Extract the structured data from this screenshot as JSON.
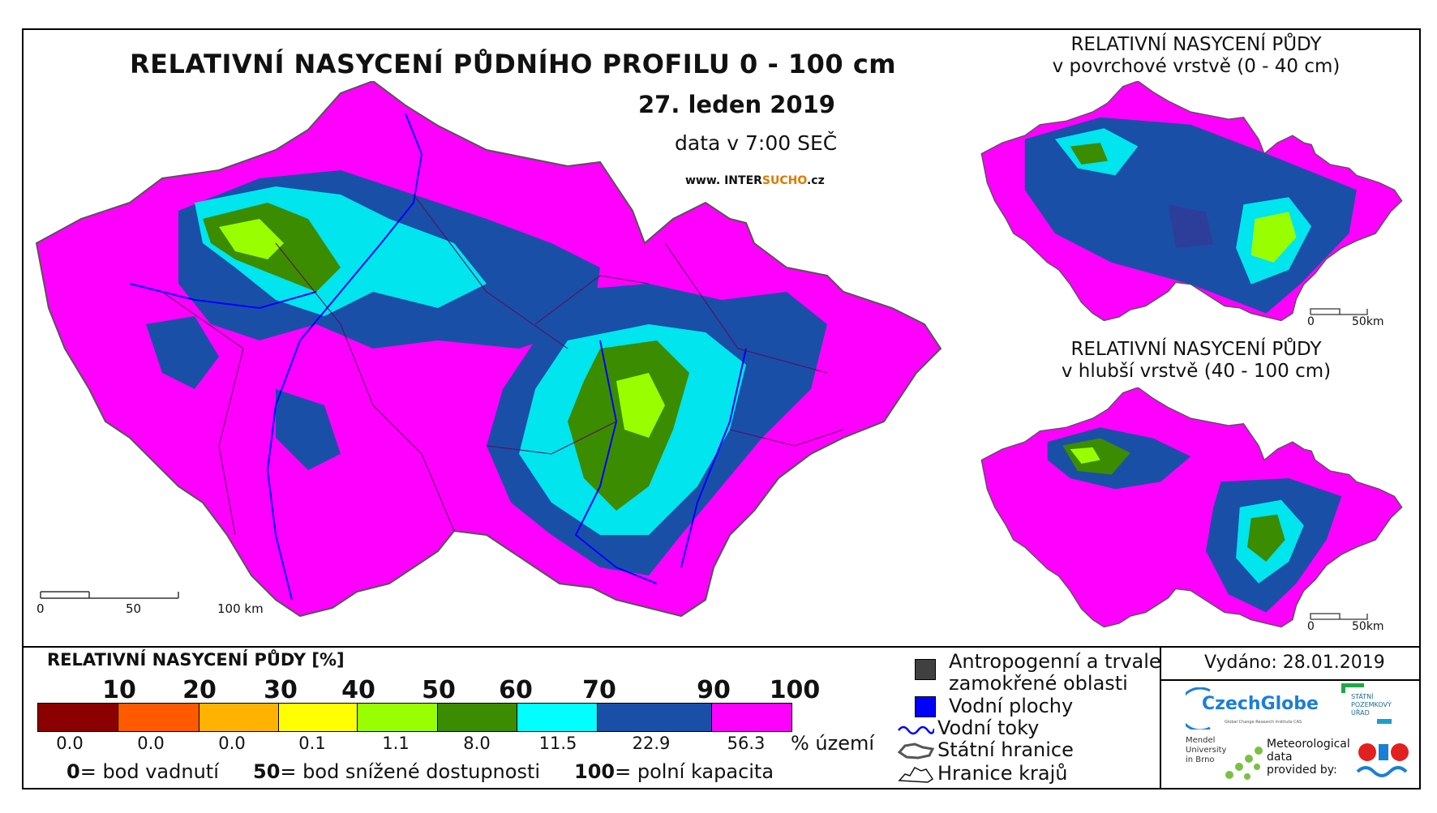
{
  "title": "RELATIVNÍ NASYCENÍ PŮDNÍHO PROFILU 0 - 100 cm",
  "date": "27. leden 2019",
  "data_time": "data v 7:00 SEČ",
  "website": {
    "prefix": "www. INTER",
    "highlight": "SUCHO",
    "suffix": ".cz"
  },
  "main_map": {
    "scalebar": {
      "labels": [
        "0",
        "50",
        "100 km"
      ]
    }
  },
  "inset_surface": {
    "title_line1": "RELATIVNÍ NASYCENÍ PŮDY",
    "title_line2": "v povrchové vrstvě (0 - 40 cm)",
    "scalebar": {
      "labels": [
        "0",
        "50km"
      ]
    }
  },
  "inset_deep": {
    "title_line1": "RELATIVNÍ NASYCENÍ PŮDY",
    "title_line2": "v hlubší vrstvě (40 - 100 cm)",
    "scalebar": {
      "labels": [
        "0",
        "50km"
      ]
    }
  },
  "legend": {
    "title": "RELATIVNÍ NASYCENÍ PŮDY [%]",
    "ticks": [
      "10",
      "20",
      "30",
      "40",
      "50",
      "60",
      "70",
      "90",
      "100"
    ],
    "classes": [
      {
        "color": "#8b0000",
        "percent": "0.0"
      },
      {
        "color": "#ff5a00",
        "percent": "0.0"
      },
      {
        "color": "#ffb300",
        "percent": "0.0"
      },
      {
        "color": "#ffff00",
        "percent": "0.1"
      },
      {
        "color": "#99ff00",
        "percent": "1.1"
      },
      {
        "color": "#3c8c00",
        "percent": "8.0"
      },
      {
        "color": "#00ffff",
        "percent": "11.5"
      },
      {
        "color": "#1a4fa8",
        "percent": "22.9"
      },
      {
        "color": "#ff00ff",
        "percent": "56.3"
      }
    ],
    "percent_unit": "% území",
    "definitions": [
      {
        "value": "0",
        "text": "= bod vadnutí"
      },
      {
        "value": "50",
        "text": "= bod snížené dostupnosti"
      },
      {
        "value": "100",
        "text": "= polní kapacita"
      }
    ]
  },
  "symbols": [
    {
      "icon": "gray-square",
      "color": "#404040",
      "line1": "Antropogenní a trvale",
      "line2": "zamokřené oblasti"
    },
    {
      "icon": "blue-square",
      "color": "#0000ff",
      "line1": "Vodní plochy"
    },
    {
      "icon": "river-line",
      "color": "#0000ff",
      "line1": "Vodní toky"
    },
    {
      "icon": "state-border",
      "line1": "Státní hranice"
    },
    {
      "icon": "region-border",
      "line1": "Hranice krajů"
    }
  ],
  "issued": "Vydáno: 28.01.2019",
  "logos": {
    "czechglobe": "CzechGlobe",
    "czechglobe_sub": "Global Change Research Institute CAS",
    "spu_line1": "STÁTNÍ",
    "spu_line2": "POZEMKOVÝ",
    "spu_line3": "ÚŘAD",
    "mendel_line1": "Mendel",
    "mendel_line2": "University",
    "mendel_line3": "in Brno",
    "met_line1": "Meteorological",
    "met_line2": "data",
    "met_line3": "provided by:"
  }
}
